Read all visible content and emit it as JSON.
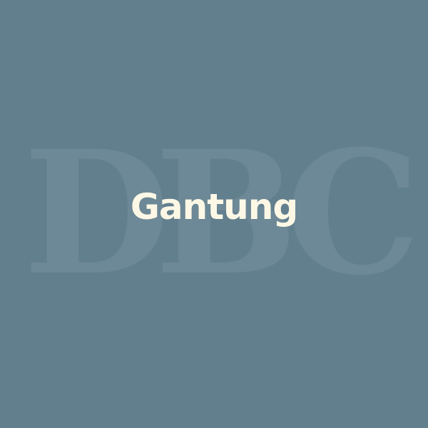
{
  "background_color": "#627f8e",
  "watermark": {
    "text": "DBC",
    "color": "#ffffff"
  },
  "title": {
    "text": "Gantung",
    "color": "#fdf8e6"
  }
}
